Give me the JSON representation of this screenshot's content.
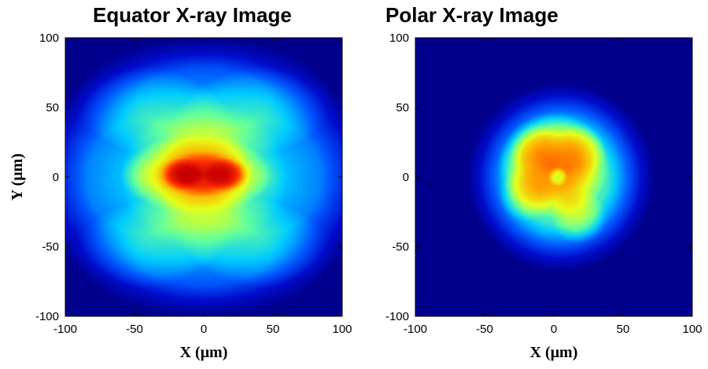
{
  "chart_data": [
    {
      "type": "heatmap",
      "title": "Equator X-ray Image",
      "xlabel": "X (μm)",
      "ylabel": "Y (μm)",
      "xlim": [
        -100,
        100
      ],
      "ylim": [
        -100,
        100
      ],
      "xticks": [
        "-100",
        "-50",
        "0",
        "50",
        "100"
      ],
      "yticks": [
        "100",
        "50",
        "0",
        "-50",
        "-100"
      ],
      "colormap": "jet",
      "background_color": "#0a1a8c",
      "blobs": [
        {
          "x": -45,
          "y": 0,
          "rx": 80,
          "ry": 80,
          "level": 0.36
        },
        {
          "x": 45,
          "y": 0,
          "rx": 80,
          "ry": 80,
          "level": 0.36
        },
        {
          "x": 0,
          "y": 55,
          "rx": 95,
          "ry": 45,
          "level": 0.3
        },
        {
          "x": 0,
          "y": -55,
          "rx": 95,
          "ry": 45,
          "level": 0.3
        },
        {
          "x": 0,
          "y": 0,
          "rx": 60,
          "ry": 55,
          "level": 0.24
        },
        {
          "x": -5,
          "y": 2,
          "rx": 55,
          "ry": 28,
          "level": 0.4
        },
        {
          "x": 0,
          "y": 2,
          "rx": 34,
          "ry": 17,
          "level": 0.5
        },
        {
          "x": -15,
          "y": 2,
          "rx": 16,
          "ry": 12,
          "level": 0.55
        },
        {
          "x": 15,
          "y": 2,
          "rx": 16,
          "ry": 12,
          "level": 0.5
        }
      ]
    },
    {
      "type": "heatmap",
      "title": "Polar X-ray Image",
      "xlabel": "X (μm)",
      "ylabel": "",
      "xlim": [
        -100,
        100
      ],
      "ylim": [
        -100,
        100
      ],
      "xticks": [
        "-100",
        "-50",
        "0",
        "50",
        "100"
      ],
      "yticks": [
        "100",
        "50",
        "0",
        "-50",
        "-100"
      ],
      "colormap": "jet",
      "background_color": "#0a1a8c",
      "blobs": [
        {
          "x": 5,
          "y": 0,
          "rx": 68,
          "ry": 68,
          "level": 0.55
        },
        {
          "x": 0,
          "y": 8,
          "rx": 40,
          "ry": 38,
          "level": 0.4
        },
        {
          "x": -12,
          "y": 18,
          "rx": 20,
          "ry": 20,
          "level": 0.2
        },
        {
          "x": 18,
          "y": 18,
          "rx": 20,
          "ry": 20,
          "level": 0.2
        },
        {
          "x": -20,
          "y": -12,
          "rx": 20,
          "ry": 20,
          "level": 0.2
        },
        {
          "x": 18,
          "y": -28,
          "rx": 20,
          "ry": 20,
          "level": 0.2
        },
        {
          "x": 3,
          "y": 0,
          "rx": 7,
          "ry": 7,
          "level": -0.25
        }
      ]
    }
  ]
}
